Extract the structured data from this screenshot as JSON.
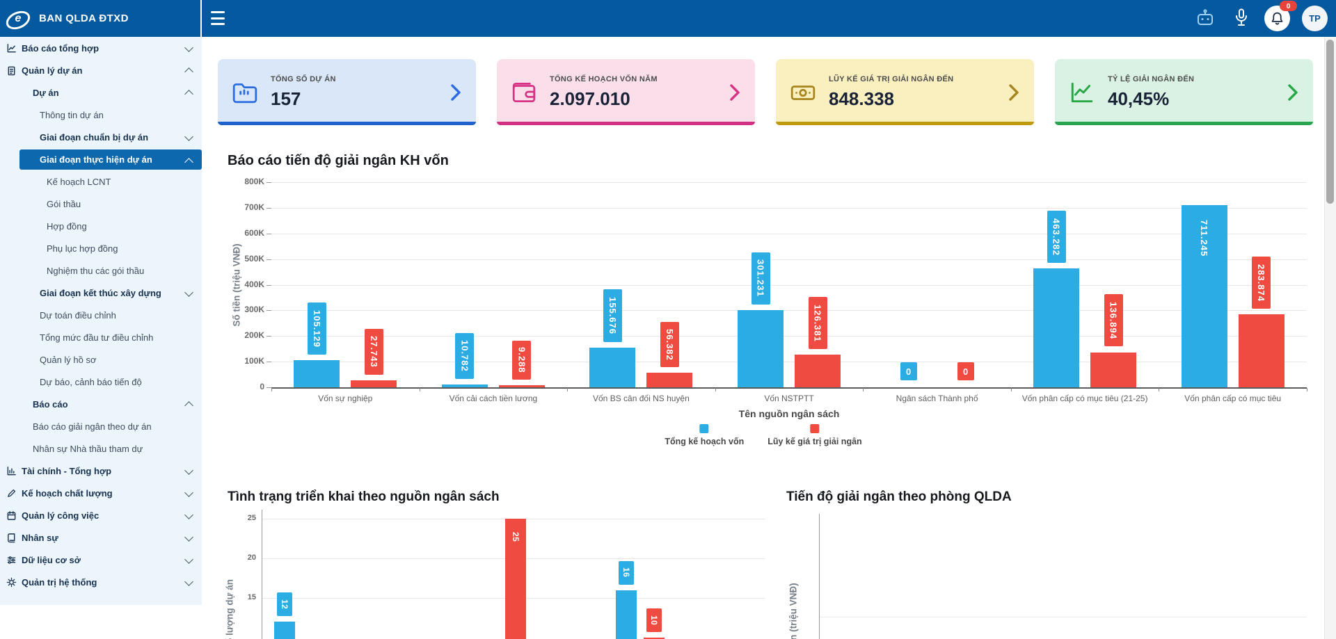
{
  "app": {
    "title": "BAN QLDA ĐTXD"
  },
  "header": {
    "bell_badge": "0",
    "avatar_initials": "TP",
    "icons": [
      "robot-icon",
      "microphone-icon",
      "bell-icon",
      "avatar"
    ]
  },
  "sidebar": {
    "items": [
      {
        "label": "Báo cáo tổng hợp",
        "level": 1,
        "bold": true,
        "icon": "report",
        "chevron": "down",
        "selected": false
      },
      {
        "label": "Quản lý dự án",
        "level": 1,
        "bold": true,
        "icon": "project",
        "chevron": "up",
        "selected": false
      },
      {
        "label": "Dự án",
        "level": 2,
        "bold": true,
        "icon": null,
        "chevron": "up",
        "selected": false
      },
      {
        "label": "Thông tin dự án",
        "level": 3,
        "bold": false,
        "icon": null,
        "chevron": null,
        "selected": false
      },
      {
        "label": "Giai đoạn chuẩn bị dự án",
        "level": 3,
        "bold": true,
        "icon": null,
        "chevron": "down",
        "selected": false
      },
      {
        "label": "Giai đoạn thực hiện dự án",
        "level": 3,
        "bold": true,
        "icon": null,
        "chevron": "up",
        "selected": true
      },
      {
        "label": "Kế hoạch LCNT",
        "level": 4,
        "bold": false,
        "icon": null,
        "chevron": null,
        "selected": false
      },
      {
        "label": "Gói thầu",
        "level": 4,
        "bold": false,
        "icon": null,
        "chevron": null,
        "selected": false
      },
      {
        "label": "Hợp đồng",
        "level": 4,
        "bold": false,
        "icon": null,
        "chevron": null,
        "selected": false
      },
      {
        "label": "Phụ lục hợp đồng",
        "level": 4,
        "bold": false,
        "icon": null,
        "chevron": null,
        "selected": false
      },
      {
        "label": "Nghiệm thu các gói thầu",
        "level": 4,
        "bold": false,
        "icon": null,
        "chevron": null,
        "selected": false
      },
      {
        "label": "Giai đoạn kết thúc xây dựng",
        "level": 3,
        "bold": true,
        "icon": null,
        "chevron": "down",
        "selected": false
      },
      {
        "label": "Dự toán điều chỉnh",
        "level": 3,
        "bold": false,
        "icon": null,
        "chevron": null,
        "selected": false
      },
      {
        "label": "Tổng mức đầu tư điều chỉnh",
        "level": 3,
        "bold": false,
        "icon": null,
        "chevron": null,
        "selected": false
      },
      {
        "label": "Quản lý hồ sơ",
        "level": 3,
        "bold": false,
        "icon": null,
        "chevron": null,
        "selected": false
      },
      {
        "label": "Dự báo, cảnh báo tiến độ",
        "level": 3,
        "bold": false,
        "icon": null,
        "chevron": null,
        "selected": false
      },
      {
        "label": "Báo cáo",
        "level": 2,
        "bold": true,
        "icon": null,
        "chevron": "up",
        "selected": false
      },
      {
        "label": "Báo cáo giải ngân theo dự án",
        "level": 2,
        "bold": false,
        "icon": null,
        "chevron": null,
        "selected": false
      },
      {
        "label": "Nhân sự Nhà thầu tham dự",
        "level": 2,
        "bold": false,
        "icon": null,
        "chevron": null,
        "selected": false
      },
      {
        "label": "Tài chính - Tổng hợp",
        "level": 1,
        "bold": true,
        "icon": "finance",
        "chevron": "down",
        "selected": false
      },
      {
        "label": "Kế hoạch chất lượng",
        "level": 1,
        "bold": true,
        "icon": "quality",
        "chevron": "down",
        "selected": false
      },
      {
        "label": "Quản lý công việc",
        "level": 1,
        "bold": true,
        "icon": "tasks",
        "chevron": "down",
        "selected": false
      },
      {
        "label": "Nhân sự",
        "level": 1,
        "bold": true,
        "icon": "hr",
        "chevron": "down",
        "selected": false
      },
      {
        "label": "Dữ liệu cơ sở",
        "level": 1,
        "bold": true,
        "icon": "data",
        "chevron": "down",
        "selected": false
      },
      {
        "label": "Quản trị hệ thống",
        "level": 1,
        "bold": true,
        "icon": "system",
        "chevron": "down",
        "selected": false
      }
    ]
  },
  "cards": [
    {
      "label": "TỔNG SỐ DỰ ÁN",
      "value": "157",
      "icon": "folder-icon",
      "bg": "#d9e7f9",
      "accent": "#2b6de0"
    },
    {
      "label": "TỔNG KẾ HOẠCH VỐN NĂM",
      "value": "2.097.010",
      "icon": "wallet-icon",
      "bg": "#fadfeb",
      "accent": "#d63384"
    },
    {
      "label": "LŨY KẾ GIÁ TRỊ GIẢI NGÂN ĐẾN",
      "value": "848.338",
      "icon": "cash-icon",
      "bg": "#f9efbf",
      "accent": "#a8851c"
    },
    {
      "label": "TỶ LỆ GIẢI NGÂN ĐẾN",
      "value": "40,45%",
      "icon": "chart-line-icon",
      "bg": "#d9f2e3",
      "accent": "#28a745"
    }
  ],
  "chart_data": [
    {
      "type": "bar",
      "title": "Báo cáo tiến độ giải ngân KH vốn",
      "xlabel": "Tên nguồn ngân sách",
      "ylabel": "Số tiền (triệu VNĐ)",
      "ylim": [
        0,
        800000
      ],
      "yticks": [
        "0",
        "100K",
        "200K",
        "300K",
        "400K",
        "500K",
        "600K",
        "700K",
        "800K"
      ],
      "grid": true,
      "legend_position": "bottom",
      "categories": [
        "Vốn sự nghiệp",
        "Vốn cải cách tiền lương",
        "Vốn BS cân đối NS huyện",
        "Vốn NSTPTT",
        "Ngân sách Thành phố",
        "Vốn phân cấp có mục tiêu (21-25)",
        "Vốn phân cấp có mục tiêu"
      ],
      "series": [
        {
          "name": "Tổng kế hoạch vốn",
          "color": "#2bace2",
          "values": [
            105129,
            10782,
            155676,
            301231,
            0,
            463282,
            711245
          ],
          "labels": [
            "105.129",
            "10.782",
            "155.676",
            "301.231",
            "0",
            "463.282",
            "711.245"
          ]
        },
        {
          "name": "Lũy kế giá trị giải ngân",
          "color": "#f04b40",
          "values": [
            27743,
            9288,
            56382,
            126381,
            0,
            136894,
            283874
          ],
          "labels": [
            "27.743",
            "9.288",
            "56.382",
            "126.381",
            "0",
            "136.894",
            "283.874"
          ]
        }
      ]
    },
    {
      "type": "bar",
      "title": "Tình trạng triển khai theo nguồn ngân sách",
      "ylabel": "Số lượng dự án",
      "yticks_visible": [
        "25",
        "20",
        "15"
      ],
      "grid": true,
      "bars": [
        {
          "series": "Tổng kế hoạch vốn",
          "color": "#2bace2",
          "label": "12",
          "value": 12
        },
        {
          "series": "Lũy kế giá trị giải ngân",
          "color": "#f04b40",
          "label": "25",
          "value": 25
        },
        {
          "series": "Tổng kế hoạch vốn",
          "color": "#2bace2",
          "label": "16",
          "value": 16
        },
        {
          "series": "Lũy kế giá trị giải ngân",
          "color": "#f04b40",
          "label": "10",
          "value": 10
        }
      ]
    },
    {
      "type": "bar",
      "title": "Tiến độ giải ngân theo phòng QLDA",
      "ylabel": "Số tiền (triệu VNĐ)"
    }
  ]
}
